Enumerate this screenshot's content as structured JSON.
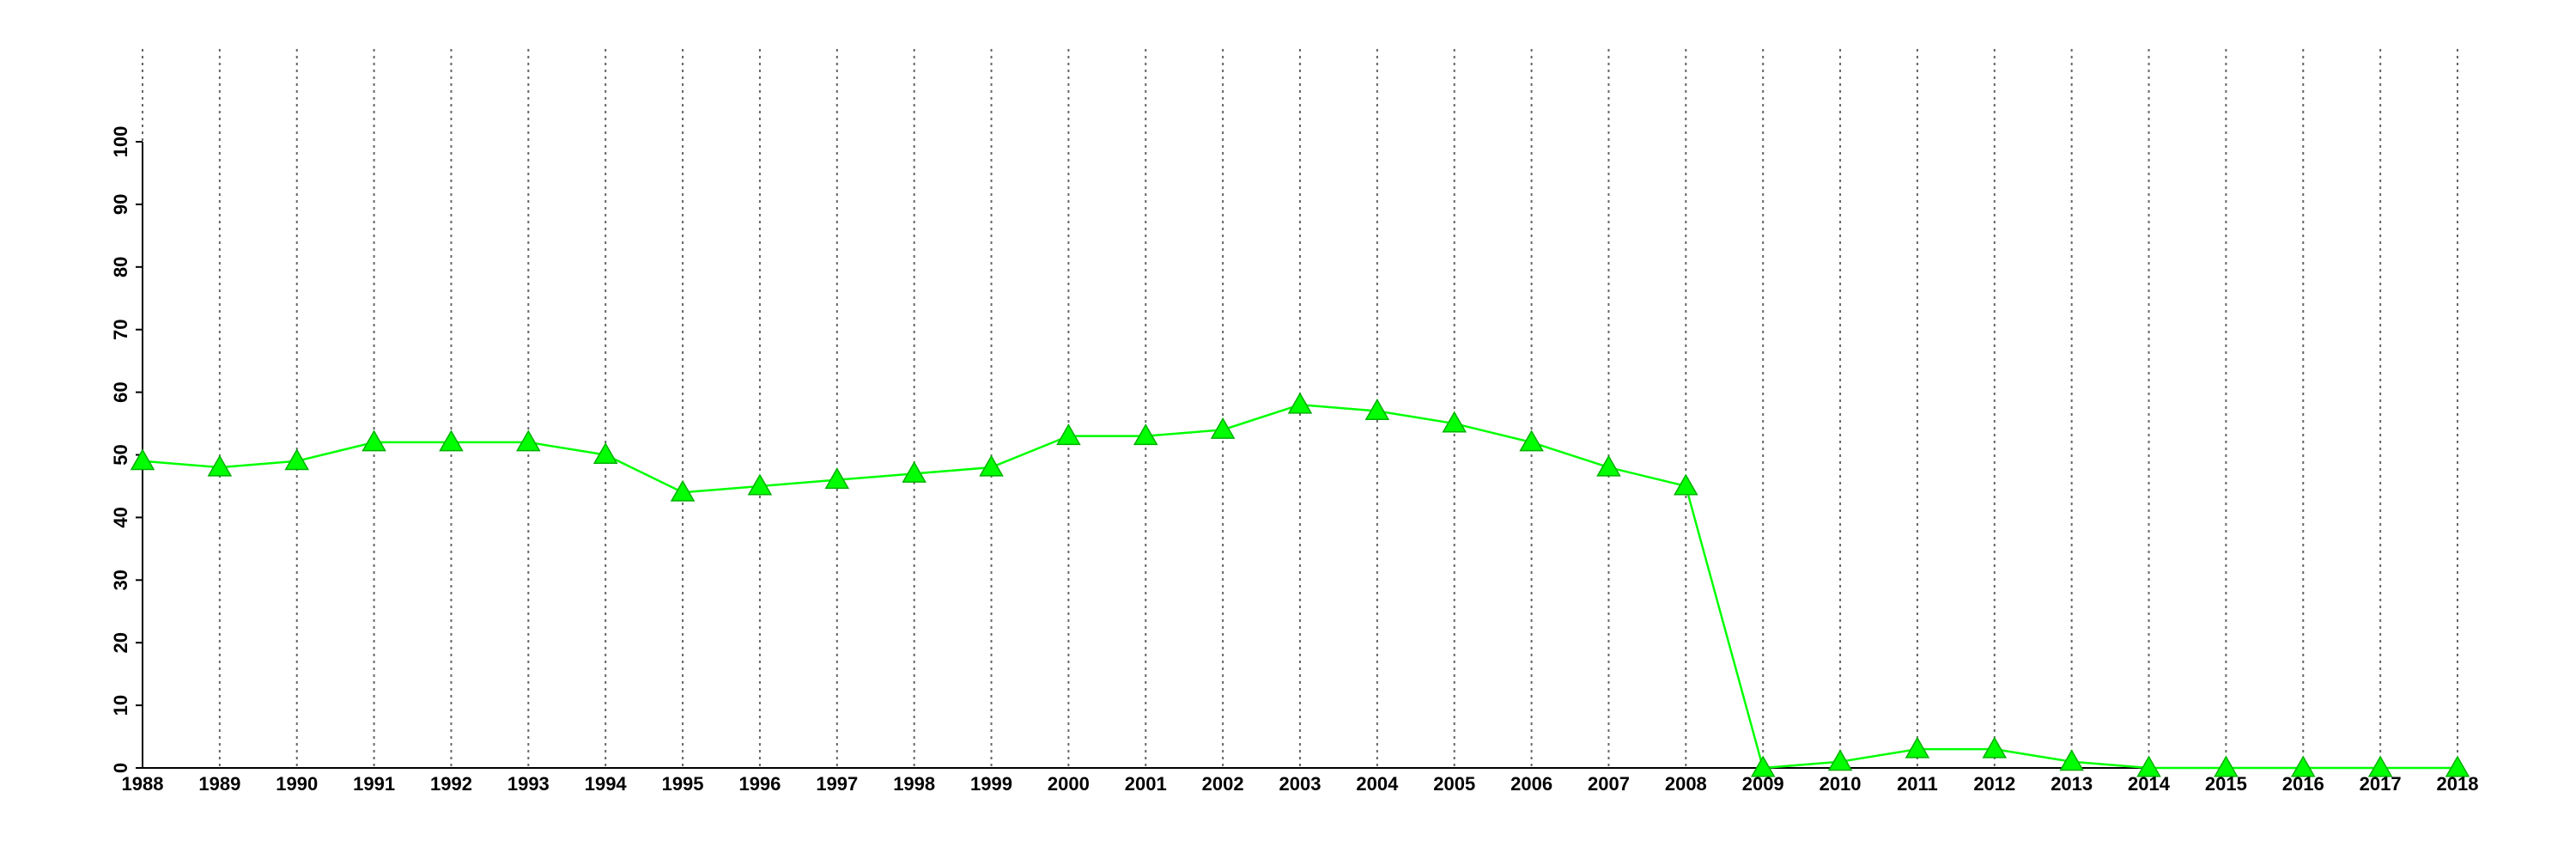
{
  "chart_data": {
    "type": "line",
    "x": [
      1988,
      1989,
      1990,
      1991,
      1992,
      1993,
      1994,
      1995,
      1996,
      1997,
      1998,
      1999,
      2000,
      2001,
      2002,
      2003,
      2004,
      2005,
      2006,
      2007,
      2008,
      2009,
      2010,
      2011,
      2012,
      2013,
      2014,
      2015,
      2016,
      2017,
      2018
    ],
    "series": [
      {
        "color": "#00ff00",
        "marker": "triangle",
        "values": [
          49,
          48,
          49,
          52,
          52,
          52,
          50,
          44,
          45,
          46,
          47,
          48,
          53,
          53,
          54,
          58,
          57,
          55,
          52,
          48,
          45,
          0,
          1,
          3,
          3,
          1,
          0,
          0,
          0,
          0,
          0
        ]
      }
    ],
    "xlim": [
      1988,
      2018
    ],
    "xticks": [
      1988,
      1989,
      1990,
      1991,
      1992,
      1993,
      1994,
      1995,
      1996,
      1997,
      1998,
      1999,
      2000,
      2001,
      2002,
      2003,
      2004,
      2005,
      2006,
      2007,
      2008,
      2009,
      2010,
      2011,
      2012,
      2013,
      2014,
      2015,
      2016,
      2017,
      2018
    ],
    "ylim": [
      0,
      100
    ],
    "yticks": [
      0,
      10,
      20,
      30,
      40,
      50,
      60,
      70,
      80,
      90,
      100
    ],
    "grid": "x"
  }
}
